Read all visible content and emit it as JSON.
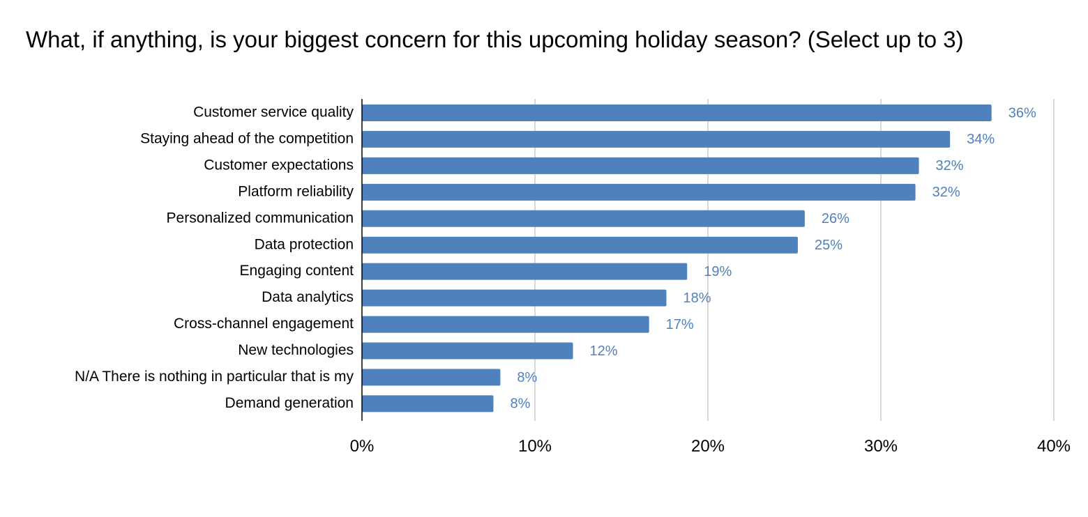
{
  "chart_data": {
    "type": "bar",
    "orientation": "horizontal",
    "title": "What, if anything, is your biggest concern for this upcoming holiday season? (Select up to 3)",
    "xlabel": "",
    "ylabel": "",
    "xlim": [
      0,
      40
    ],
    "x_ticks": [
      "0%",
      "10%",
      "20%",
      "30%",
      "40%"
    ],
    "x_tick_values": [
      0,
      10,
      20,
      30,
      40
    ],
    "grid": "vertical",
    "legend": "none",
    "categories": [
      "Customer service quality",
      "Staying ahead of the competition",
      "Customer expectations",
      "Platform reliability",
      "Personalized communication",
      "Data protection",
      "Engaging content",
      "Data analytics",
      "Cross-channel engagement",
      "New technologies",
      "N/A There is nothing in particular that is my",
      "Demand generation"
    ],
    "values": [
      36.4,
      34,
      32.2,
      32,
      25.6,
      25.2,
      18.8,
      17.6,
      16.6,
      12.2,
      8,
      7.6
    ],
    "data_labels": [
      "36%",
      "34%",
      "32%",
      "32%",
      "26%",
      "25%",
      "19%",
      "18%",
      "17%",
      "12%",
      "8%",
      "8%"
    ],
    "colors": {
      "bar": "#4f81bd",
      "data_label": "#4f81bd",
      "grid": "#cccccc",
      "axis": "#000000",
      "text": "#000000"
    }
  }
}
